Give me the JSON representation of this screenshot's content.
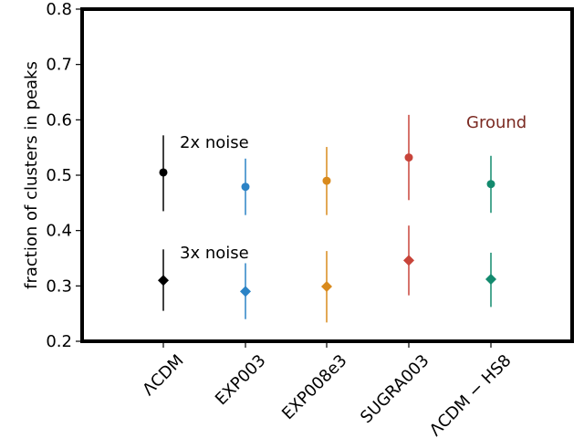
{
  "chart_data": {
    "type": "scatter",
    "title": "",
    "xlabel": "",
    "ylabel": "fraction of clusters in peaks",
    "ylim": [
      0.2,
      0.8
    ],
    "yticks": [
      0.2,
      0.3,
      0.4,
      0.5,
      0.6,
      0.7,
      0.8
    ],
    "ytick_labels": [
      "0.2",
      "0.3",
      "0.4",
      "0.5",
      "0.6",
      "0.7",
      "0.8"
    ],
    "categories": [
      "ΛCDM",
      "EXP003",
      "EXP008e3",
      "SUGRA003",
      "ΛCDM − HS8"
    ],
    "colors": [
      "#000000",
      "#2b83c6",
      "#d98a1c",
      "#c8443a",
      "#138a6e"
    ],
    "series": [
      {
        "name": "2x noise",
        "marker": "circle",
        "values": [
          0.505,
          0.479,
          0.49,
          0.532,
          0.484
        ],
        "err_low": [
          0.435,
          0.428,
          0.428,
          0.455,
          0.432
        ],
        "err_high": [
          0.572,
          0.53,
          0.551,
          0.609,
          0.535
        ]
      },
      {
        "name": "3x noise",
        "marker": "diamond",
        "values": [
          0.31,
          0.29,
          0.299,
          0.346,
          0.312
        ],
        "err_low": [
          0.255,
          0.24,
          0.234,
          0.283,
          0.262
        ],
        "err_high": [
          0.366,
          0.341,
          0.363,
          0.409,
          0.36
        ]
      }
    ],
    "annotations": [
      {
        "text": "2x noise",
        "color": "#000000"
      },
      {
        "text": "3x noise",
        "color": "#000000"
      },
      {
        "text": "Ground",
        "color": "#7b2a22"
      }
    ]
  }
}
